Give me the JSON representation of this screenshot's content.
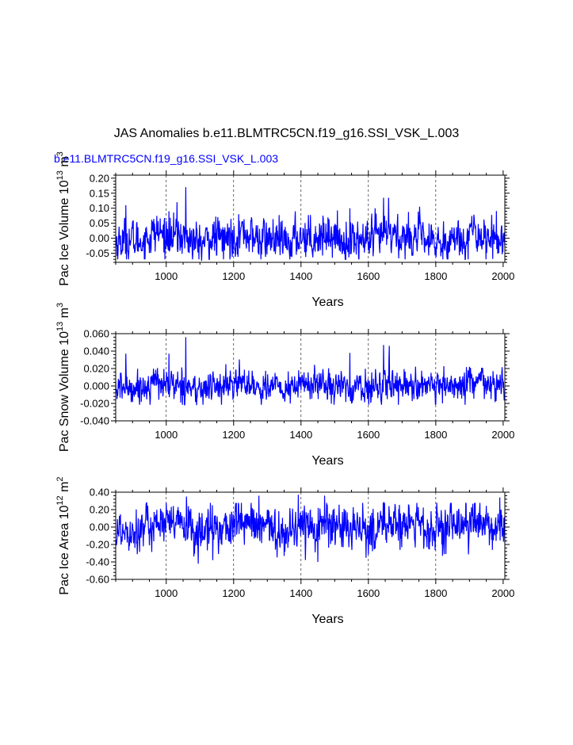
{
  "main_title": "JAS Anomalies b.e11.BLMTRC5CN.f19_g16.SSI_VSK_L.003",
  "run_label": "b.e11.BLMTRC5CN.f19_g16.SSI_VSK_L.003",
  "colors": {
    "series": "#0000ff",
    "run_label": "#0000ff",
    "axis": "#000000",
    "grid": "#000000"
  },
  "chart_data": [
    {
      "type": "line",
      "name": "pac-ice-volume",
      "ylabel_main": "Pac Ice Volume 10",
      "ylabel_exp1": "13",
      "ylabel_unit": " m",
      "ylabel_exp2": "3",
      "xlabel": "Years",
      "xlim": [
        850,
        2005
      ],
      "ylim": [
        -0.08,
        0.21
      ],
      "yticks": [
        -0.05,
        0.0,
        0.05,
        0.1,
        0.15,
        0.2
      ],
      "ytick_labels": [
        "-0.05",
        "0.00",
        "0.05",
        "0.10",
        "0.15",
        "0.20"
      ],
      "xticks": [
        1000,
        1200,
        1400,
        1600,
        1800,
        2000
      ],
      "xtick_labels": [
        "1000",
        "1200",
        "1400",
        "1600",
        "1800",
        "2000"
      ],
      "gridlines_x": [
        1000,
        1200,
        1400,
        1600,
        1800
      ],
      "series": {
        "name": "b.e11.BLMTRC5CN.f19_g16.SSI_VSK_L.003",
        "x_start": 850,
        "x_end": 2005,
        "amplitude": 0.032,
        "min": -0.078,
        "max": 0.17,
        "peaks": [
          {
            "x": 1058,
            "y": 0.17
          },
          {
            "x": 1032,
            "y": 0.12
          },
          {
            "x": 1008,
            "y": 0.09
          },
          {
            "x": 880,
            "y": 0.11
          },
          {
            "x": 1105,
            "y": -0.075
          },
          {
            "x": 1645,
            "y": 0.135
          },
          {
            "x": 1660,
            "y": 0.135
          },
          {
            "x": 1620,
            "y": 0.1
          },
          {
            "x": 1545,
            "y": 0.1
          },
          {
            "x": 1815,
            "y": -0.06
          },
          {
            "x": 1170,
            "y": -0.07
          }
        ]
      }
    },
    {
      "type": "line",
      "name": "pac-snow-volume",
      "ylabel_main": "Pac Snow Volume 10",
      "ylabel_exp1": "13",
      "ylabel_unit": " m",
      "ylabel_exp2": "3",
      "xlabel": "Years",
      "xlim": [
        850,
        2005
      ],
      "ylim": [
        -0.04,
        0.06
      ],
      "yticks": [
        -0.04,
        -0.02,
        0.0,
        0.02,
        0.04,
        0.06
      ],
      "ytick_labels": [
        "-0.040",
        "-0.020",
        "0.000",
        "0.020",
        "0.040",
        "0.060"
      ],
      "xticks": [
        1000,
        1200,
        1400,
        1600,
        1800,
        2000
      ],
      "xtick_labels": [
        "1000",
        "1200",
        "1400",
        "1600",
        "1800",
        "2000"
      ],
      "gridlines_x": [
        1000,
        1200,
        1400,
        1600,
        1800
      ],
      "series": {
        "name": "b.e11.BLMTRC5CN.f19_g16.SSI_VSK_L.003",
        "x_start": 850,
        "x_end": 2005,
        "amplitude": 0.0085,
        "min": -0.024,
        "max": 0.056,
        "peaks": [
          {
            "x": 1058,
            "y": 0.056
          },
          {
            "x": 1645,
            "y": 0.047
          },
          {
            "x": 1662,
            "y": 0.046
          },
          {
            "x": 1545,
            "y": 0.038
          },
          {
            "x": 880,
            "y": 0.037
          },
          {
            "x": 1008,
            "y": 0.037
          },
          {
            "x": 1090,
            "y": -0.022
          },
          {
            "x": 1820,
            "y": -0.02
          }
        ]
      }
    },
    {
      "type": "line",
      "name": "pac-ice-area",
      "ylabel_main": "Pac Ice Area 10",
      "ylabel_exp1": "12",
      "ylabel_unit": " m",
      "ylabel_exp2": "2",
      "xlabel": "Years",
      "xlim": [
        850,
        2005
      ],
      "ylim": [
        -0.6,
        0.4
      ],
      "yticks": [
        -0.6,
        -0.4,
        -0.2,
        0.0,
        0.2,
        0.4
      ],
      "ytick_labels": [
        "-0.60",
        "-0.40",
        "-0.20",
        "0.00",
        "0.20",
        "0.40"
      ],
      "xticks": [
        1000,
        1200,
        1400,
        1600,
        1800,
        2000
      ],
      "xtick_labels": [
        "1000",
        "1200",
        "1400",
        "1600",
        "1800",
        "2000"
      ],
      "gridlines_x": [
        1000,
        1200,
        1400,
        1600,
        1800
      ],
      "series": {
        "name": "b.e11.BLMTRC5CN.f19_g16.SSI_VSK_L.003",
        "x_start": 850,
        "x_end": 2005,
        "amplitude": 0.12,
        "min": -0.42,
        "max": 0.37,
        "peaks": [
          {
            "x": 1095,
            "y": -0.42
          },
          {
            "x": 1450,
            "y": -0.4
          },
          {
            "x": 1392,
            "y": 0.37
          },
          {
            "x": 1275,
            "y": 0.36
          },
          {
            "x": 1470,
            "y": 0.36
          },
          {
            "x": 1060,
            "y": 0.35
          },
          {
            "x": 1990,
            "y": 0.34
          },
          {
            "x": 1820,
            "y": -0.33
          },
          {
            "x": 1138,
            "y": -0.38
          }
        ]
      }
    }
  ]
}
